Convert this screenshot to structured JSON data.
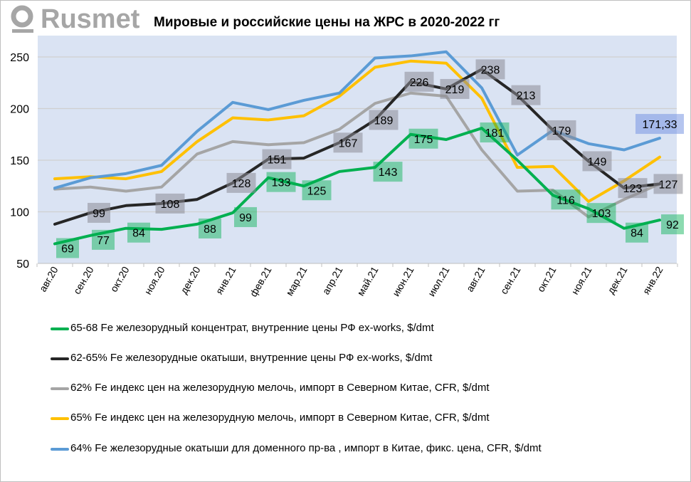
{
  "logo": {
    "text": "Rusmet"
  },
  "chart_data": {
    "type": "line",
    "title": "Мировые и российские цены на ЖРС в 2020-2022 гг",
    "categories": [
      "авг.20",
      "сен.20",
      "окт.20",
      "ноя.20",
      "дек.20",
      "янв.21",
      "фев.21",
      "мар.21",
      "апр.21",
      "май.21",
      "июн.21",
      "июл.21",
      "авг.21",
      "сен.21",
      "окт.21",
      "ноя.21",
      "дек.21",
      "янв.22"
    ],
    "ylim": [
      50,
      260
    ],
    "yticks": [
      50,
      100,
      150,
      200,
      250
    ],
    "grid": true,
    "legend_position": "bottom",
    "series": [
      {
        "name": "65-68 Fe железорудный концентрат, внутренние цены РФ ex-works, $/dmt",
        "color": "#00b050",
        "values": [
          69,
          77,
          84,
          83,
          88,
          99,
          133,
          125,
          139,
          143,
          175,
          170,
          181,
          150,
          116,
          103,
          84,
          92
        ],
        "labels": [
          "69",
          "77",
          "84",
          null,
          "88",
          "99",
          "133",
          "125",
          null,
          "143",
          "175",
          null,
          "181",
          null,
          "116",
          "103",
          "84",
          "92"
        ],
        "label_bg": "rgba(0,176,80,0.45)"
      },
      {
        "name": "62-65% Fe железорудные окатыши, внутренние цены РФ ex-works, $/dmt",
        "color": "#262626",
        "values": [
          88,
          99,
          106,
          108,
          112,
          128,
          151,
          152,
          167,
          189,
          226,
          219,
          238,
          213,
          179,
          149,
          123,
          127
        ],
        "labels": [
          null,
          "99",
          null,
          "108",
          null,
          "128",
          "151",
          null,
          "167",
          "189",
          "226",
          "219",
          "238",
          "213",
          "179",
          "149",
          "123",
          "127"
        ],
        "label_bg": "rgba(140,140,150,0.55)"
      },
      {
        "name": "62% Fe индекс цен на железорудную мелочь, импорт в Северном Китае, CFR, $/dmt",
        "color": "#a5a5a5",
        "values": [
          122,
          124,
          120,
          124,
          156,
          168,
          165,
          167,
          180,
          205,
          215,
          212,
          160,
          120,
          121,
          95,
          112,
          127
        ],
        "labels": [],
        "label_bg": ""
      },
      {
        "name": "65% Fe индекс цен на железорудную мелочь, импорт в Северном Китае, CFR, $/dmt",
        "color": "#ffc000",
        "values": [
          132,
          134,
          132,
          139,
          168,
          191,
          189,
          193,
          212,
          240,
          246,
          244,
          210,
          143,
          144,
          110,
          130,
          153
        ],
        "labels": [],
        "label_bg": ""
      },
      {
        "name": "64% Fe железорудные окатыши для доменного пр-ва , импорт в Китае, фикс. цена, CFR, $/dmt",
        "color": "#5b9bd5",
        "values": [
          123,
          133,
          137,
          145,
          178,
          206,
          199,
          208,
          215,
          249,
          251,
          255,
          220,
          155,
          179,
          166,
          160,
          171.33
        ],
        "labels": [
          null,
          null,
          null,
          null,
          null,
          null,
          null,
          null,
          null,
          null,
          null,
          null,
          null,
          null,
          null,
          null,
          null,
          "171,33"
        ],
        "label_bg": "rgba(120,150,225,0.55)"
      }
    ]
  }
}
